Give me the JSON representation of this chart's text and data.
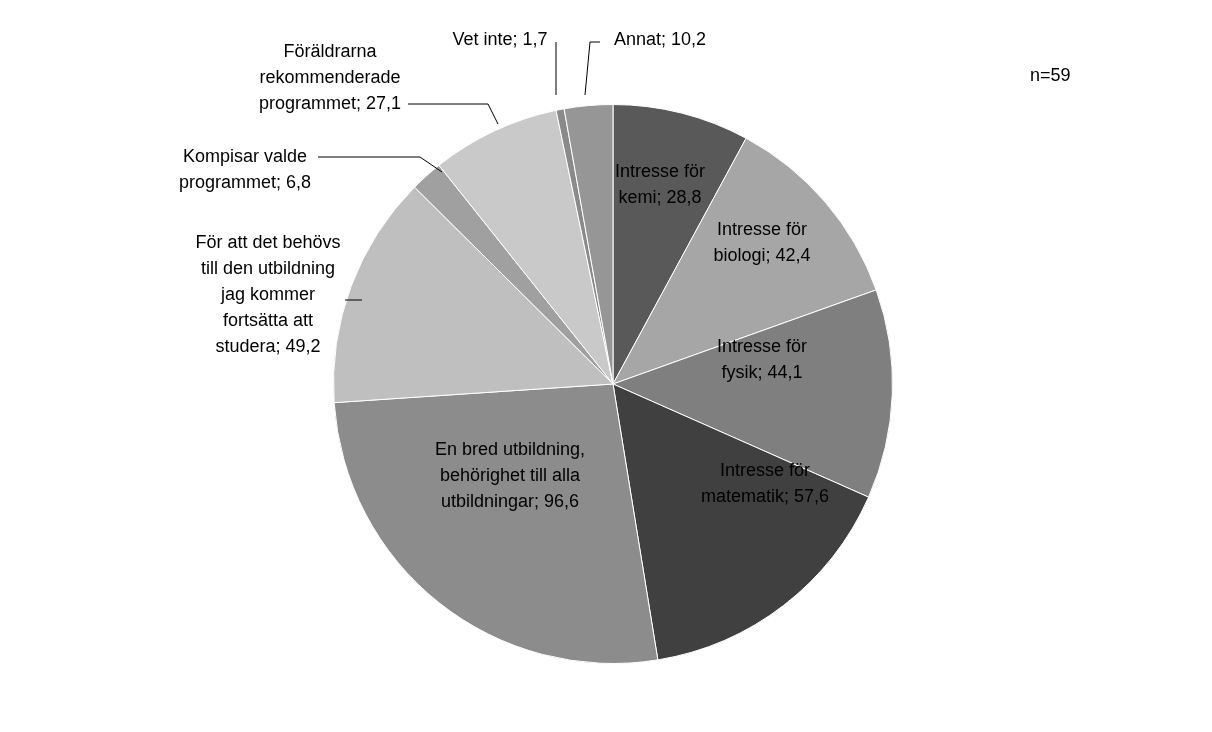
{
  "chart_data": {
    "type": "pie",
    "categories": [
      "Intresse för kemi",
      "Intresse för biologi",
      "Intresse för fysik",
      "Intresse för matematik",
      "En bred utbildning, behörighet till alla utbildningar",
      "För att det behövs till den utbildning jag kommer fortsätta att studera",
      "Kompisar valde programmet",
      "Föräldrarna rekommenderade programmet",
      "Vet inte",
      "Annat"
    ],
    "values": [
      28.8,
      42.4,
      44.1,
      57.6,
      96.6,
      49.2,
      6.8,
      27.1,
      1.7,
      10.2
    ],
    "colors": [
      "#595959",
      "#a6a6a6",
      "#7f7f7f",
      "#404040",
      "#8c8c8c",
      "#bfbfbf",
      "#a0a0a0",
      "#c9c9c9",
      "#8a8a8a",
      "#969696"
    ],
    "value_labels": [
      "28,8",
      "42,4",
      "44,1",
      "57,6",
      "96,6",
      "49,2",
      "6,8",
      "27,1",
      "1,7",
      "10,2"
    ],
    "legend": false,
    "annotations": [
      "n=59"
    ]
  }
}
